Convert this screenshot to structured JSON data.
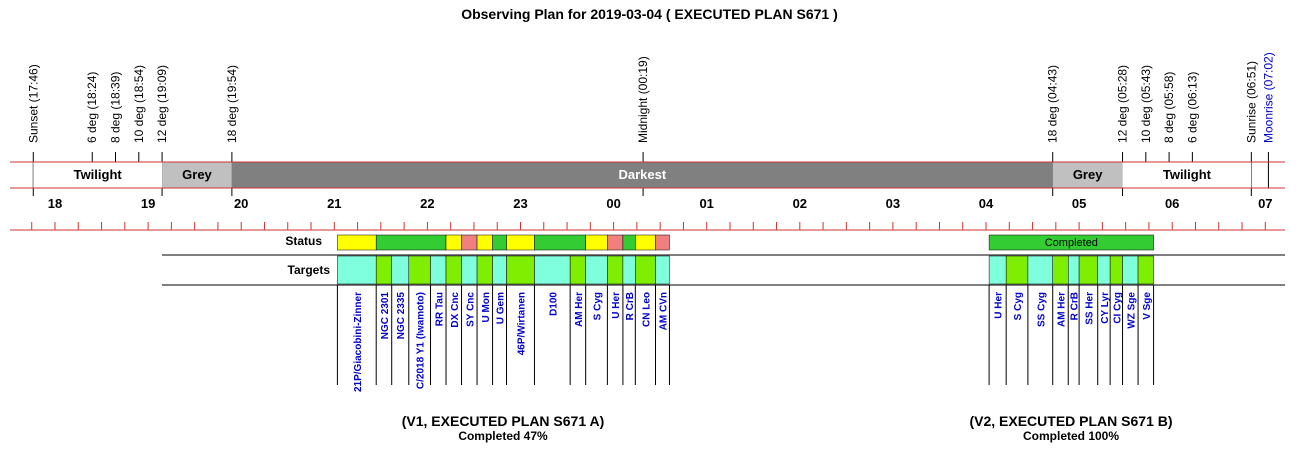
{
  "title": "Observing Plan for 2019-03-04 ( EXECUTED PLAN S671 )",
  "events": [
    {
      "label": "Sunset (17:46)",
      "time": "17:46",
      "color": "#000000"
    },
    {
      "label": "6 deg (18:24)",
      "time": "18:24",
      "color": "#000000"
    },
    {
      "label": "8 deg (18:39)",
      "time": "18:39",
      "color": "#000000"
    },
    {
      "label": "10 deg (18:54)",
      "time": "18:54",
      "color": "#000000"
    },
    {
      "label": "12 deg (19:09)",
      "time": "19:09",
      "color": "#000000"
    },
    {
      "label": "18 deg (19:54)",
      "time": "19:54",
      "color": "#000000"
    },
    {
      "label": "Midnight (00:19)",
      "time": "00:19",
      "color": "#000000"
    },
    {
      "label": "18 deg (04:43)",
      "time": "04:43",
      "color": "#000000"
    },
    {
      "label": "12 deg (05:28)",
      "time": "05:28",
      "color": "#000000"
    },
    {
      "label": "10 deg (05:43)",
      "time": "05:43",
      "color": "#000000"
    },
    {
      "label": "8 deg (05:58)",
      "time": "05:58",
      "color": "#000000"
    },
    {
      "label": "6 deg (06:13)",
      "time": "06:13",
      "color": "#000000"
    },
    {
      "label": "Sunrise (06:51)",
      "time": "06:51",
      "color": "#000000"
    },
    {
      "label": "Moonrise (07:02)",
      "time": "07:02",
      "color": "#0000cc"
    }
  ],
  "bands": [
    {
      "label": "Twilight",
      "start": "17:46",
      "end": "19:09",
      "fill": "#ffffff",
      "text_color": "#000000"
    },
    {
      "label": "Grey",
      "start": "19:09",
      "end": "19:54",
      "fill": "#c0c0c0",
      "text_color": "#000000"
    },
    {
      "label": "Darkest",
      "start": "19:54",
      "end": "04:43",
      "fill": "#808080",
      "text_color": "#ffffff"
    },
    {
      "label": "Grey",
      "start": "04:43",
      "end": "05:28",
      "fill": "#c0c0c0",
      "text_color": "#000000"
    },
    {
      "label": "Twilight",
      "start": "05:28",
      "end": "06:51",
      "fill": "#ffffff",
      "text_color": "#000000"
    }
  ],
  "hours": [
    "18",
    "19",
    "20",
    "21",
    "22",
    "23",
    "00",
    "01",
    "02",
    "03",
    "04",
    "05",
    "06",
    "07"
  ],
  "row_labels": {
    "status": "Status",
    "targets": "Targets"
  },
  "status_colors": {
    "observed": "#33cc33",
    "partial": "#ffff00",
    "failed": "#f08080",
    "target_a": "#80ffdd",
    "target_b": "#80ee00"
  },
  "plans": [
    {
      "name": "(V1, EXECUTED PLAN S671 A)",
      "completion": "Completed 47%",
      "status_text": "",
      "status_segments": [
        {
          "start": "21:02",
          "end": "21:27",
          "state": "partial"
        },
        {
          "start": "21:27",
          "end": "22:12",
          "state": "observed"
        },
        {
          "start": "22:12",
          "end": "22:22",
          "state": "partial"
        },
        {
          "start": "22:22",
          "end": "22:32",
          "state": "failed"
        },
        {
          "start": "22:32",
          "end": "22:42",
          "state": "partial"
        },
        {
          "start": "22:42",
          "end": "22:51",
          "state": "observed"
        },
        {
          "start": "22:51",
          "end": "23:09",
          "state": "partial"
        },
        {
          "start": "23:09",
          "end": "23:42",
          "state": "observed"
        },
        {
          "start": "23:42",
          "end": "23:56",
          "state": "partial"
        },
        {
          "start": "23:56",
          "end": "00:06",
          "state": "failed"
        },
        {
          "start": "00:06",
          "end": "00:14",
          "state": "observed"
        },
        {
          "start": "00:14",
          "end": "00:27",
          "state": "partial"
        },
        {
          "start": "00:27",
          "end": "00:36",
          "state": "failed"
        }
      ],
      "targets": [
        {
          "name": "21P/Giacobini-Zinner",
          "start": "21:02",
          "end": "21:27",
          "color": "target_a"
        },
        {
          "name": "NGC 2301",
          "start": "21:27",
          "end": "21:37",
          "color": "target_b"
        },
        {
          "name": "NGC 2335",
          "start": "21:37",
          "end": "21:48",
          "color": "target_a"
        },
        {
          "name": "C/2018 Y1 (Iwamoto)",
          "start": "21:48",
          "end": "22:02",
          "color": "target_b"
        },
        {
          "name": "RR Tau",
          "start": "22:02",
          "end": "22:12",
          "color": "target_a"
        },
        {
          "name": "DX Cnc",
          "start": "22:12",
          "end": "22:22",
          "color": "target_b"
        },
        {
          "name": "SY Cnc",
          "start": "22:22",
          "end": "22:32",
          "color": "target_a"
        },
        {
          "name": "U Mon",
          "start": "22:32",
          "end": "22:42",
          "color": "target_b"
        },
        {
          "name": "U Gem",
          "start": "22:42",
          "end": "22:51",
          "color": "target_a"
        },
        {
          "name": "46P/Wirtanen",
          "start": "22:51",
          "end": "23:09",
          "color": "target_b"
        },
        {
          "name": "D100",
          "start": "23:09",
          "end": "23:32",
          "color": "target_a"
        },
        {
          "name": "AM Her",
          "start": "23:32",
          "end": "23:42",
          "color": "target_b"
        },
        {
          "name": "S Cyg",
          "start": "23:42",
          "end": "23:56",
          "color": "target_a"
        },
        {
          "name": "U Her",
          "start": "23:56",
          "end": "00:06",
          "color": "target_b"
        },
        {
          "name": "R CrB",
          "start": "00:06",
          "end": "00:14",
          "color": "target_a"
        },
        {
          "name": "CN Leo",
          "start": "00:14",
          "end": "00:27",
          "color": "target_b"
        },
        {
          "name": "AM CVn",
          "start": "00:27",
          "end": "00:36",
          "color": "target_a"
        }
      ]
    },
    {
      "name": "(V2, EXECUTED PLAN S671 B)",
      "completion": "Completed 100%",
      "status_text": "Completed",
      "status_segments": [
        {
          "start": "04:02",
          "end": "05:48",
          "state": "observed"
        }
      ],
      "targets": [
        {
          "name": "U Her",
          "start": "04:02",
          "end": "04:13",
          "color": "target_a"
        },
        {
          "name": "S Cyg",
          "start": "04:13",
          "end": "04:27",
          "color": "target_b"
        },
        {
          "name": "SS Cyg",
          "start": "04:27",
          "end": "04:43",
          "color": "target_a"
        },
        {
          "name": "AM Her",
          "start": "04:43",
          "end": "04:53",
          "color": "target_b"
        },
        {
          "name": "R CrB",
          "start": "04:53",
          "end": "05:00",
          "color": "target_a"
        },
        {
          "name": "SS Her",
          "start": "05:00",
          "end": "05:12",
          "color": "target_b"
        },
        {
          "name": "CY Lyr",
          "start": "05:12",
          "end": "05:20",
          "color": "target_a"
        },
        {
          "name": "CI Cyg",
          "start": "05:20",
          "end": "05:28",
          "color": "target_b"
        },
        {
          "name": "WZ Sge",
          "start": "05:28",
          "end": "05:38",
          "color": "target_a"
        },
        {
          "name": "V Sge",
          "start": "05:38",
          "end": "05:48",
          "color": "target_b"
        }
      ]
    }
  ]
}
